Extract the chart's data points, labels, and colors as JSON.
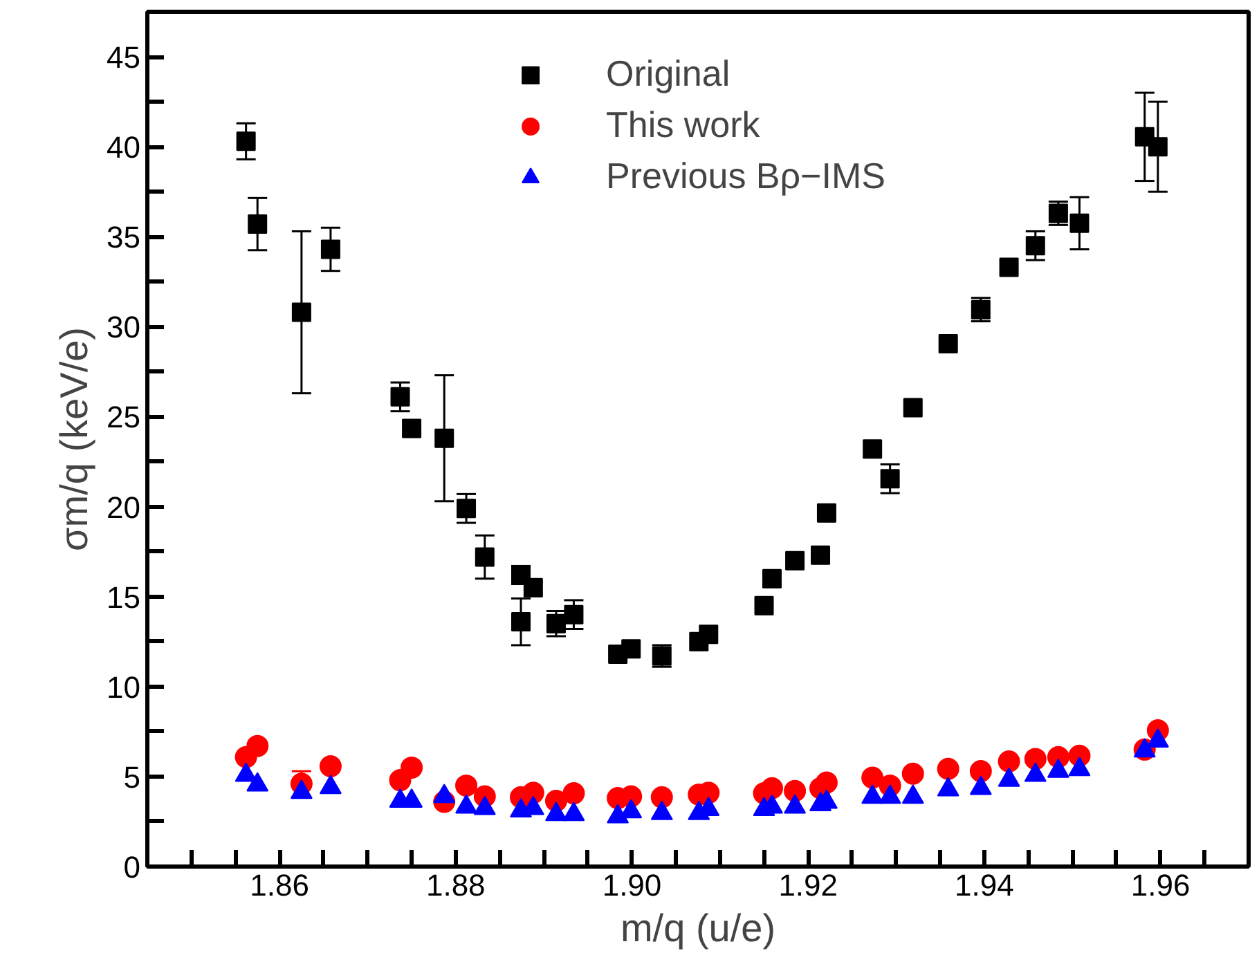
{
  "chart_data": {
    "type": "scatter",
    "xlabel": "m/q (u/e)",
    "ylabel": "σm/q (keV/e)",
    "x": [
      1.8562,
      1.8575,
      1.8625,
      1.8658,
      1.8737,
      1.875,
      1.8787,
      1.8812,
      1.8833,
      1.8874,
      1.8874,
      1.8888,
      1.8914,
      1.8934,
      1.8984,
      1.8999,
      1.9034,
      1.9076,
      1.9087,
      1.915,
      1.9159,
      1.9185,
      1.9214,
      1.9221,
      1.9273,
      1.9293,
      1.9319,
      1.9359,
      1.9396,
      1.9428,
      1.9458,
      1.9484,
      1.9508,
      1.9582,
      1.9597
    ],
    "series": [
      {
        "name": "Original",
        "color": "#000000",
        "marker": "square",
        "values": [
          40.3,
          35.7,
          30.8,
          34.3,
          26.1,
          24.35,
          23.8,
          19.9,
          17.2,
          16.2,
          13.6,
          15.5,
          13.5,
          14.0,
          11.8,
          12.1,
          11.7,
          12.5,
          12.9,
          14.5,
          16.0,
          17.0,
          17.3,
          19.65,
          23.2,
          21.55,
          25.5,
          29.05,
          30.95,
          33.3,
          34.5,
          36.3,
          35.75,
          40.55,
          40.0
        ],
        "errors": [
          1.0,
          1.45,
          4.5,
          1.2,
          0.8,
          null,
          3.5,
          0.8,
          1.2,
          0.5,
          1.3,
          null,
          0.7,
          0.8,
          null,
          null,
          0.6,
          null,
          null,
          null,
          null,
          null,
          null,
          null,
          null,
          0.8,
          null,
          null,
          0.65,
          null,
          0.8,
          0.65,
          1.45,
          2.45,
          2.5
        ]
      },
      {
        "name": "This work",
        "color": "#ff0000",
        "marker": "circle",
        "values": [
          6.08,
          6.7,
          4.6,
          5.57,
          4.8,
          5.5,
          3.6,
          4.5,
          3.9,
          3.85,
          null,
          4.1,
          3.65,
          4.07,
          3.8,
          3.9,
          3.85,
          4.0,
          4.1,
          4.07,
          4.35,
          4.2,
          4.35,
          4.67,
          4.94,
          4.5,
          5.16,
          5.43,
          5.3,
          5.84,
          5.98,
          6.08,
          6.16,
          6.5,
          7.57
        ],
        "errors": [
          null,
          null,
          0.7,
          null,
          null,
          null,
          null,
          null,
          null,
          null,
          null,
          null,
          null,
          null,
          null,
          null,
          null,
          null,
          null,
          null,
          null,
          null,
          null,
          null,
          null,
          null,
          null,
          null,
          null,
          null,
          null,
          null,
          null,
          null,
          null
        ]
      },
      {
        "name": "Previous Bρ−IMS",
        "color": "#0000ff",
        "marker": "triangle",
        "values": [
          5.08,
          4.54,
          4.13,
          4.4,
          3.64,
          3.64,
          3.9,
          3.31,
          3.23,
          3.1,
          null,
          3.23,
          2.9,
          2.9,
          2.77,
          3.05,
          2.96,
          2.96,
          3.18,
          3.18,
          3.31,
          3.31,
          3.45,
          3.58,
          3.86,
          3.86,
          3.86,
          4.27,
          4.35,
          4.8,
          5.08,
          5.3,
          5.4,
          6.43,
          6.98
        ]
      }
    ],
    "xlim": [
      1.845,
      1.97
    ],
    "xticks": [
      {
        "value": 1.85,
        "label": null
      },
      {
        "value": 1.855,
        "label": null
      },
      1.86,
      {
        "value": 1.865,
        "label": null
      },
      {
        "value": 1.87,
        "label": null
      },
      {
        "value": 1.875,
        "label": null
      },
      1.88,
      {
        "value": 1.885,
        "label": null
      },
      {
        "value": 1.89,
        "label": null
      },
      {
        "value": 1.895,
        "label": null
      },
      {
        "value": 1.9,
        "label": "1.90"
      },
      {
        "value": 1.905,
        "label": null
      },
      {
        "value": 1.91,
        "label": null
      },
      {
        "value": 1.915,
        "label": null
      },
      1.92,
      {
        "value": 1.925,
        "label": null
      },
      {
        "value": 1.93,
        "label": null
      },
      {
        "value": 1.935,
        "label": null
      },
      1.94,
      {
        "value": 1.945,
        "label": null
      },
      {
        "value": 1.95,
        "label": null
      },
      {
        "value": 1.955,
        "label": null
      },
      1.96,
      {
        "value": 1.965,
        "label": null
      }
    ],
    "ylim": [
      0,
      47.5
    ],
    "yticks": [
      0,
      {
        "value": 2.5,
        "label": null
      },
      5,
      {
        "value": 7.5,
        "label": null
      },
      10,
      {
        "value": 12.5,
        "label": null
      },
      15,
      {
        "value": 17.5,
        "label": null
      },
      20,
      {
        "value": 22.5,
        "label": null
      },
      25,
      {
        "value": 27.5,
        "label": null
      },
      30,
      {
        "value": 32.5,
        "label": null
      },
      35,
      {
        "value": 37.5,
        "label": null
      },
      40,
      {
        "value": 42.5,
        "label": null
      },
      45
    ],
    "grid": false,
    "legend": "top"
  }
}
